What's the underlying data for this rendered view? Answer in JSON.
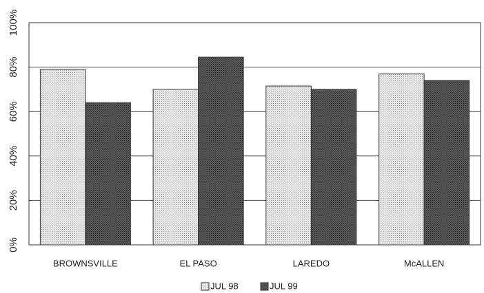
{
  "chart_data": {
    "type": "bar",
    "categories": [
      "BROWNSVILLE",
      "EL PASO",
      "LAREDO",
      "McALLEN"
    ],
    "series": [
      {
        "name": "JUL 98",
        "color": "#e4e4e4",
        "values": [
          79,
          70,
          71.5,
          77
        ]
      },
      {
        "name": "JUL 99",
        "color": "#5a5a5a",
        "values": [
          64,
          84.5,
          70,
          74
        ]
      }
    ],
    "ylim": [
      0,
      100
    ],
    "yticks": [
      {
        "value": 0,
        "label": "0%"
      },
      {
        "value": 20,
        "label": "20%"
      },
      {
        "value": 40,
        "label": "40%"
      },
      {
        "value": 60,
        "label": "60%"
      },
      {
        "value": 80,
        "label": "80%"
      },
      {
        "value": 100,
        "label": "100%"
      }
    ],
    "grid": true
  }
}
